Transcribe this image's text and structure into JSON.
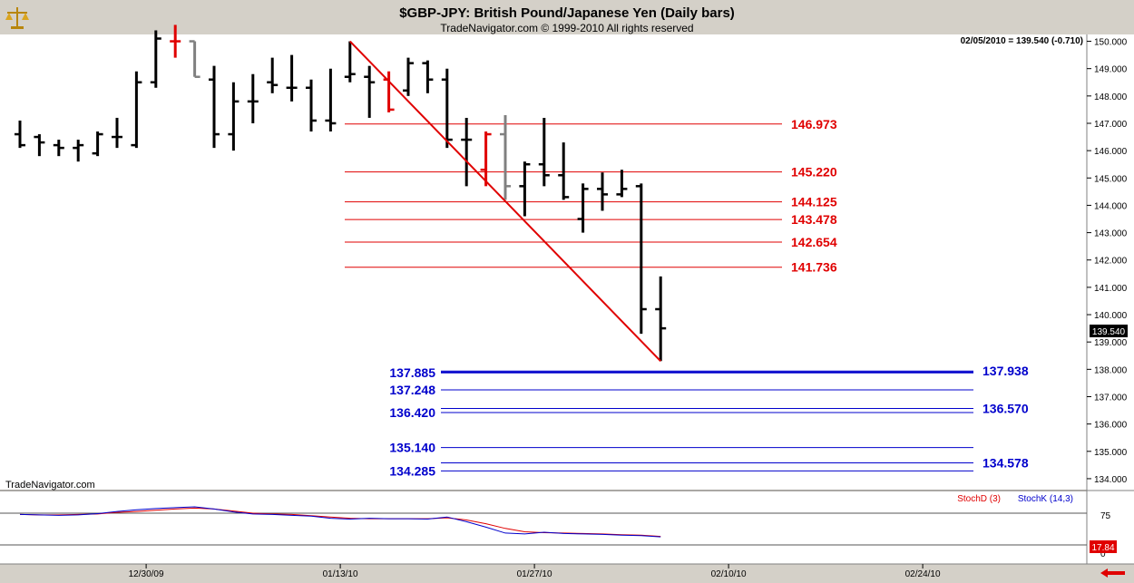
{
  "header": {
    "title": "$GBP-JPY:  British Pound/Japanese Yen  (Daily bars)",
    "copyright": "TradeNavigator.com © 1999-2010 All rights reserved"
  },
  "watermark": "TradeNavigator.com",
  "last_price_label": "139.540",
  "quote_readout": "02/05/2010 = 139.540 (-0.710)",
  "icons": {
    "logo": "scales-icon",
    "scroll": "arrow-left-icon"
  },
  "colors": {
    "up_bar": "#000000",
    "fib_red": "#e00000",
    "fib_blue": "#0000cc",
    "trendline": "#e00000",
    "gray_bar": "#808080"
  },
  "chart_data": {
    "type": "ohlc",
    "y_axis": {
      "min": 133.6,
      "max": 150.25,
      "ticks": [
        "150.000",
        "149.000",
        "148.000",
        "147.000",
        "146.000",
        "145.000",
        "144.000",
        "143.000",
        "142.000",
        "141.000",
        "140.000",
        "139.000",
        "138.000",
        "137.000",
        "136.000",
        "135.000",
        "134.000"
      ]
    },
    "x_axis": {
      "ticks": [
        {
          "label": "12/30/09",
          "index": 6.5
        },
        {
          "label": "01/13/10",
          "index": 16.5
        },
        {
          "label": "01/27/10",
          "index": 26.5
        },
        {
          "label": "02/10/10",
          "index": 36.5
        },
        {
          "label": "02/24/10",
          "index": 46.5
        }
      ]
    },
    "bars": [
      {
        "o": 146.6,
        "h": 147.1,
        "l": 146.1,
        "c": 146.2,
        "color": "black"
      },
      {
        "o": 146.5,
        "h": 146.6,
        "l": 145.8,
        "c": 146.3,
        "color": "black"
      },
      {
        "o": 146.2,
        "h": 146.4,
        "l": 145.8,
        "c": 146.1,
        "color": "black"
      },
      {
        "o": 146.1,
        "h": 146.4,
        "l": 145.6,
        "c": 146.2,
        "color": "black"
      },
      {
        "o": 145.9,
        "h": 146.7,
        "l": 145.8,
        "c": 146.6,
        "color": "black"
      },
      {
        "o": 146.5,
        "h": 147.2,
        "l": 146.1,
        "c": 146.5,
        "color": "black"
      },
      {
        "o": 146.2,
        "h": 148.9,
        "l": 146.1,
        "c": 148.5,
        "color": "black"
      },
      {
        "o": 148.5,
        "h": 150.4,
        "l": 148.3,
        "c": 150.1,
        "color": "black"
      },
      {
        "o": 150.0,
        "h": 150.6,
        "l": 149.4,
        "c": 150.0,
        "color": "red"
      },
      {
        "o": 150.0,
        "h": 150.0,
        "l": 148.7,
        "c": 148.7,
        "color": "gray"
      },
      {
        "o": 148.6,
        "h": 149.1,
        "l": 146.1,
        "c": 146.6,
        "color": "black"
      },
      {
        "o": 146.6,
        "h": 148.5,
        "l": 146.0,
        "c": 147.8,
        "color": "black"
      },
      {
        "o": 147.8,
        "h": 148.8,
        "l": 147.0,
        "c": 147.8,
        "color": "black"
      },
      {
        "o": 148.5,
        "h": 149.4,
        "l": 148.1,
        "c": 148.4,
        "color": "black"
      },
      {
        "o": 148.3,
        "h": 149.5,
        "l": 147.8,
        "c": 148.3,
        "color": "black"
      },
      {
        "o": 148.3,
        "h": 148.6,
        "l": 146.7,
        "c": 147.1,
        "color": "black"
      },
      {
        "o": 147.1,
        "h": 149.0,
        "l": 146.7,
        "c": 147.0,
        "color": "black"
      },
      {
        "o": 148.7,
        "h": 150.0,
        "l": 148.5,
        "c": 148.8,
        "color": "black"
      },
      {
        "o": 148.7,
        "h": 149.1,
        "l": 147.2,
        "c": 148.5,
        "color": "black"
      },
      {
        "o": 148.6,
        "h": 148.9,
        "l": 147.4,
        "c": 147.5,
        "color": "red"
      },
      {
        "o": 148.2,
        "h": 149.4,
        "l": 148.0,
        "c": 149.2,
        "color": "black"
      },
      {
        "o": 149.2,
        "h": 149.3,
        "l": 148.1,
        "c": 148.6,
        "color": "black"
      },
      {
        "o": 148.6,
        "h": 149.0,
        "l": 146.1,
        "c": 146.4,
        "color": "black"
      },
      {
        "o": 146.4,
        "h": 147.2,
        "l": 144.7,
        "c": 146.4,
        "color": "black"
      },
      {
        "o": 145.3,
        "h": 146.7,
        "l": 144.7,
        "c": 146.6,
        "color": "red"
      },
      {
        "o": 146.6,
        "h": 147.3,
        "l": 144.2,
        "c": 144.7,
        "color": "gray"
      },
      {
        "o": 144.7,
        "h": 145.6,
        "l": 143.6,
        "c": 145.5,
        "color": "black"
      },
      {
        "o": 145.5,
        "h": 147.2,
        "l": 144.7,
        "c": 145.1,
        "color": "black"
      },
      {
        "o": 145.1,
        "h": 146.3,
        "l": 144.2,
        "c": 144.3,
        "color": "black"
      },
      {
        "o": 143.5,
        "h": 144.8,
        "l": 143.0,
        "c": 144.6,
        "color": "black"
      },
      {
        "o": 144.6,
        "h": 145.2,
        "l": 143.8,
        "c": 144.4,
        "color": "black"
      },
      {
        "o": 144.4,
        "h": 145.3,
        "l": 144.3,
        "c": 144.6,
        "color": "black"
      },
      {
        "o": 144.7,
        "h": 144.8,
        "l": 139.3,
        "c": 140.2,
        "color": "black"
      },
      {
        "o": 140.2,
        "h": 141.4,
        "l": 138.3,
        "c": 139.5,
        "color": "black"
      }
    ],
    "fib_levels_red": [
      "146.973",
      "145.220",
      "144.125",
      "143.478",
      "142.654",
      "141.736"
    ],
    "fib_levels_blue_left": [
      "137.885",
      "137.248",
      "136.420",
      "135.140",
      "134.285"
    ],
    "fib_levels_blue_right": [
      "137.938",
      "136.570",
      "134.578"
    ],
    "trendline": {
      "from": {
        "index": 17,
        "price": 150.0
      },
      "to": {
        "index": 33,
        "price": 138.3
      }
    },
    "stochastic": {
      "legend": [
        "StochD (3)",
        "StochK (14,3)"
      ],
      "levels": [
        "75",
        "0"
      ],
      "last_value": "17.84",
      "k": [
        72,
        71,
        70,
        71,
        74,
        79,
        83,
        86,
        88,
        90,
        85,
        78,
        73,
        72,
        70,
        68,
        63,
        61,
        63,
        62,
        62,
        61,
        66,
        55,
        42,
        28,
        26,
        30,
        27,
        26,
        25,
        23,
        22,
        19
      ],
      "d": [
        72,
        71,
        71,
        72,
        73,
        77,
        79,
        82,
        85,
        87,
        85,
        80,
        75,
        73,
        72,
        69,
        66,
        63,
        62,
        62,
        62,
        62,
        64,
        59,
        50,
        39,
        31,
        29,
        28,
        27,
        26,
        24,
        23,
        20
      ]
    }
  }
}
